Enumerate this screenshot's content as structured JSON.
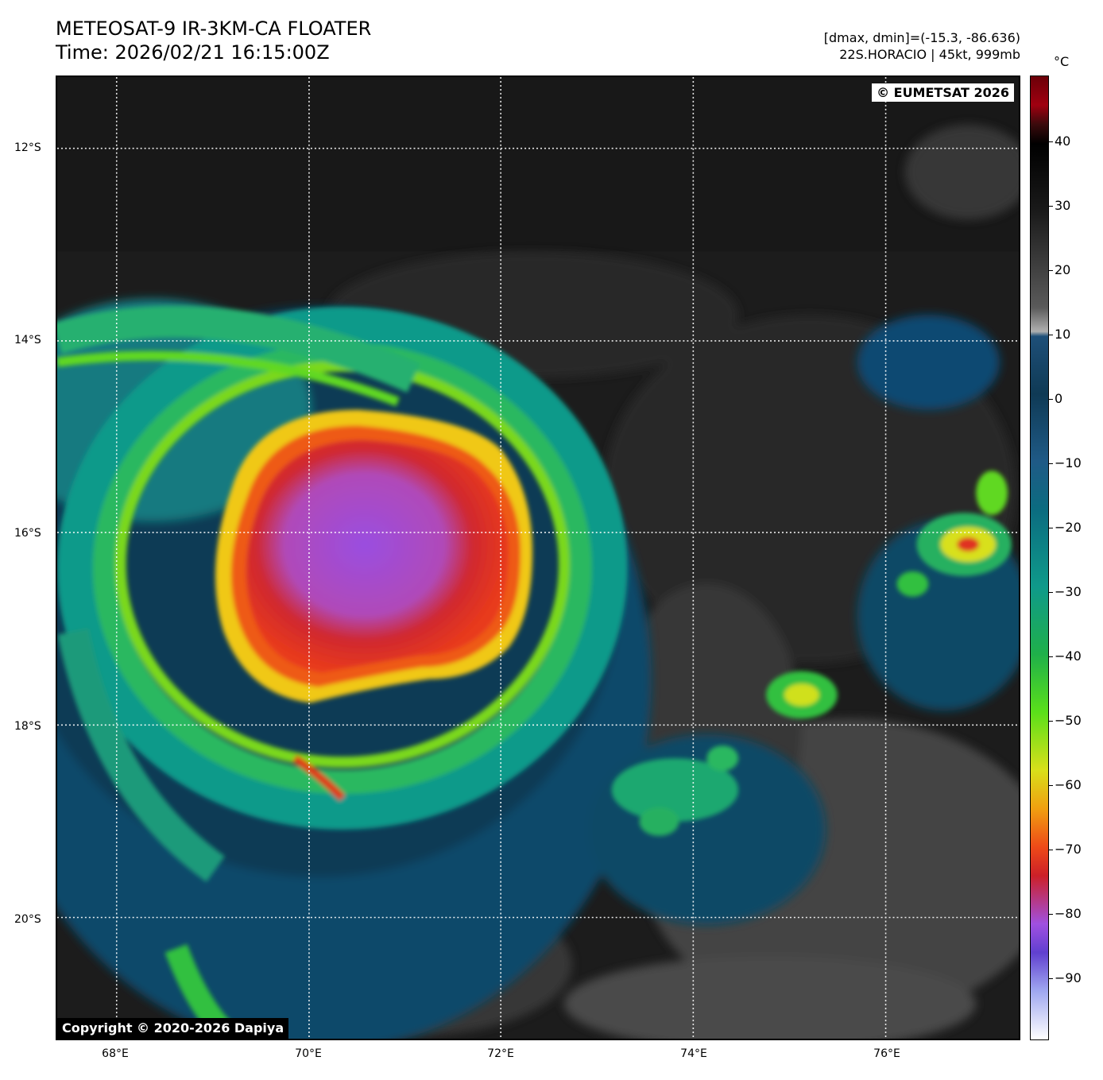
{
  "header": {
    "title_line1": "METEOSAT-9 IR-3KM-CA FLOATER",
    "title_line2": "Time: 2026/02/21 16:15:00Z",
    "meta_line1": "[dmax, dmin]=(-15.3, -86.636)",
    "meta_line2": "22S.HORACIO | 45kt, 999mb"
  },
  "map": {
    "watermark_top_right": "© EUMETSAT 2026",
    "watermark_bottom_left": "Copyright © 2020-2026 Dapiya",
    "lat_labels": [
      "12°S",
      "14°S",
      "16°S",
      "18°S",
      "20°S"
    ],
    "lon_labels": [
      "68°E",
      "70°E",
      "72°E",
      "74°E",
      "76°E"
    ],
    "storm_name": "22S.HORACIO",
    "intensity_kt": 45,
    "pressure_mb": 999
  },
  "colorbar": {
    "unit": "°C",
    "ticks": [
      "40",
      "30",
      "20",
      "10",
      "0",
      "−10",
      "−20",
      "−30",
      "−40",
      "−50",
      "−60",
      "−70",
      "−80",
      "−90"
    ],
    "colors": {
      "warm_top": "#6b0008",
      "neutral": "#5a5a5a",
      "cold_blue": "#0f3a55",
      "cyan": "#0f9a8a",
      "green": "#5ae01a",
      "yellow": "#d8e01a",
      "red": "#cc2028",
      "violet": "#6040d0",
      "coldest": "#ffffff"
    }
  }
}
